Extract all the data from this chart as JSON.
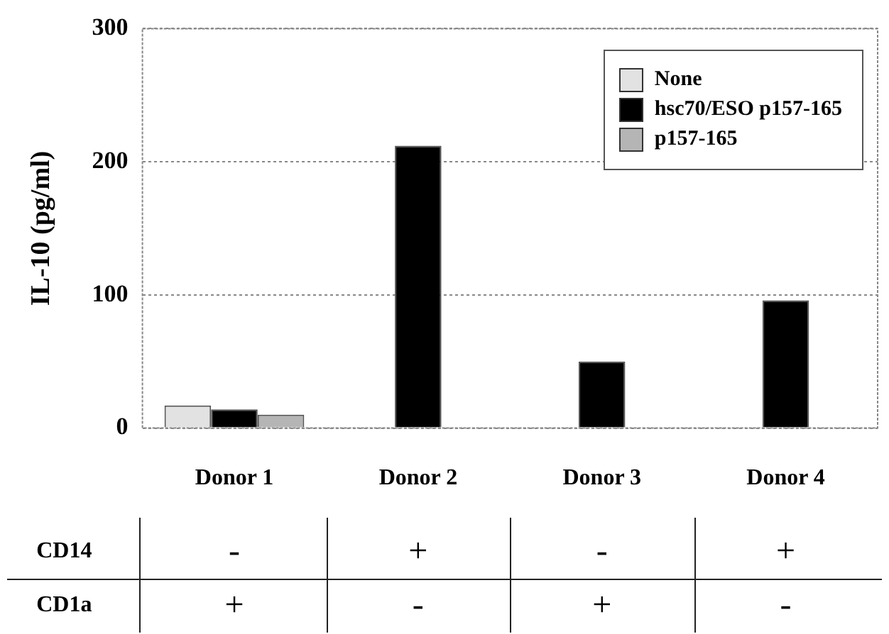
{
  "chart_data": {
    "type": "bar",
    "ylabel": "IL-10 (pg/ml)",
    "categories": [
      "Donor 1",
      "Donor 2",
      "Donor 3",
      "Donor 4"
    ],
    "series": [
      {
        "name": "None",
        "color": "#e2e2e2",
        "values": [
          17,
          0,
          0,
          0
        ]
      },
      {
        "name": "hsc70/ESO p157-165",
        "color": "#000000",
        "values": [
          14,
          212,
          50,
          96
        ]
      },
      {
        "name": "p157-165",
        "color": "#b5b5b5",
        "values": [
          10,
          0,
          0,
          0
        ]
      }
    ],
    "ylim": [
      0,
      300
    ],
    "yticks": [
      0,
      100,
      200,
      300
    ],
    "grid": "y",
    "legend": "top right",
    "annotations": [
      "CD14",
      "-",
      "+",
      "-",
      "+",
      "CD1a",
      "+",
      "-",
      "+",
      "-"
    ]
  }
}
